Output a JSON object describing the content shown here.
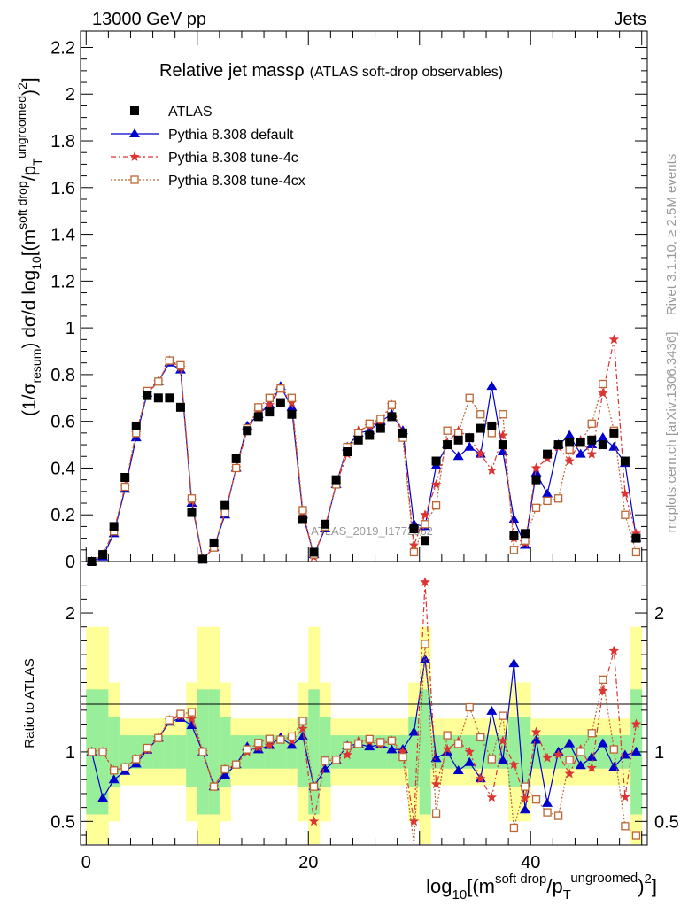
{
  "header": {
    "left": "13000 GeV pp",
    "right": "Jets",
    "side_top": "Rivet 3.1.10, ≥ 2.5M events",
    "side_bottom": "mcplots.cern.ch [arXiv:1306.3436]",
    "watermark": "ATLAS_2019_I1772062"
  },
  "title": {
    "main": "Relative jet massρ",
    "sub": "(ATLAS soft-drop observables)"
  },
  "axes": {
    "ylabel_main": "(1/σresum) dσ/d log10[(m soft drop/pT ungroomed)2]",
    "ylabel_main_parts": {
      "p1": "(1/σ",
      "p2": "resum",
      "p3": ") dσ/d log",
      "p4": "10",
      "p5": "[(m",
      "p6": "soft drop",
      "p7": "/p",
      "p8": "T",
      "p9": "ungroomed",
      "p10": ")",
      "p11": "2",
      "p12": "]"
    },
    "ylabel_ratio": "Ratio to ATLAS",
    "xlabel_parts": {
      "p1": "log",
      "p2": "10",
      "p3": "[(m",
      "p4": "soft drop",
      "p5": "/p",
      "p6": "T",
      "p7": "ungroomed",
      "p8": ")",
      "p9": "2",
      "p10": "]"
    }
  },
  "legend": [
    {
      "label": "ATLAS",
      "marker": "square",
      "color": "#000000"
    },
    {
      "label": "Pythia 8.308 default",
      "marker": "triangle",
      "color": "#0000cc"
    },
    {
      "label": "Pythia 8.308 tune-4c",
      "marker": "star",
      "color": "#dd3333"
    },
    {
      "label": "Pythia 8.308 tune-4cx",
      "marker": "open-square",
      "color": "#bb6633"
    }
  ],
  "chart_data": {
    "type": "scatter",
    "x": [
      0.5,
      1.5,
      2.5,
      3.5,
      4.5,
      5.5,
      6.5,
      7.5,
      8.5,
      9.5,
      10.5,
      11.5,
      12.5,
      13.5,
      14.5,
      15.5,
      16.5,
      17.5,
      18.5,
      19.5,
      20.5,
      21.5,
      22.5,
      23.5,
      24.5,
      25.5,
      26.5,
      27.5,
      28.5,
      29.5,
      30.5,
      31.5,
      32.5,
      33.5,
      34.5,
      35.5,
      36.5,
      37.5,
      38.5,
      39.5,
      40.5,
      41.5,
      42.5,
      43.5,
      44.5,
      45.5,
      46.5,
      47.5,
      48.5,
      49.5
    ],
    "xlim": [
      -0.5,
      50.5
    ],
    "xticks": [
      0,
      20,
      40
    ],
    "main_ylim": [
      0,
      2.27
    ],
    "main_yticks": [
      "0",
      "0.2",
      "0.4",
      "0.6",
      "0.8",
      "1",
      "1.2",
      "1.4",
      "1.6",
      "1.8",
      "2",
      "2.2"
    ],
    "ratio_ylim": [
      0.33,
      2.37
    ],
    "ratio_yticks": [
      "0.5",
      "1",
      "2"
    ],
    "series": [
      {
        "name": "ATLAS",
        "color": "#000000",
        "values": [
          0.0,
          0.03,
          0.15,
          0.36,
          0.58,
          0.71,
          0.7,
          0.7,
          0.66,
          0.21,
          0.01,
          0.08,
          0.24,
          0.44,
          0.56,
          0.62,
          0.64,
          0.68,
          0.63,
          0.18,
          0.04,
          0.16,
          0.35,
          0.47,
          0.52,
          0.54,
          0.57,
          0.62,
          0.55,
          0.14,
          0.09,
          0.43,
          0.5,
          0.52,
          0.53,
          0.57,
          0.58,
          0.5,
          0.11,
          0.12,
          0.35,
          0.46,
          0.5,
          0.51,
          0.51,
          0.52,
          0.5,
          0.55,
          0.43,
          0.1
        ]
      },
      {
        "name": "Pythia 8.308 default",
        "color": "#0000cc",
        "values": [
          0.0,
          0.02,
          0.12,
          0.31,
          0.53,
          0.72,
          0.77,
          0.85,
          0.82,
          0.25,
          0.01,
          0.06,
          0.2,
          0.4,
          0.58,
          0.63,
          0.67,
          0.75,
          0.66,
          0.2,
          0.03,
          0.14,
          0.33,
          0.49,
          0.55,
          0.56,
          0.6,
          0.63,
          0.56,
          0.16,
          0.15,
          0.41,
          0.5,
          0.45,
          0.49,
          0.46,
          0.75,
          0.47,
          0.18,
          0.07,
          0.38,
          0.29,
          0.5,
          0.54,
          0.46,
          0.5,
          0.53,
          0.49,
          0.42,
          0.1
        ]
      },
      {
        "name": "Pythia 8.308 tune-4c",
        "color": "#dd3333",
        "values": [
          0.0,
          0.03,
          0.13,
          0.32,
          0.55,
          0.72,
          0.77,
          0.86,
          0.83,
          0.26,
          0.01,
          0.06,
          0.21,
          0.4,
          0.56,
          0.64,
          0.67,
          0.74,
          0.68,
          0.21,
          0.02,
          0.15,
          0.33,
          0.46,
          0.56,
          0.58,
          0.6,
          0.67,
          0.55,
          0.07,
          0.2,
          0.33,
          0.51,
          0.56,
          0.53,
          0.46,
          0.39,
          0.54,
          0.1,
          0.08,
          0.4,
          0.44,
          0.49,
          0.43,
          0.52,
          0.46,
          0.72,
          0.95,
          0.29,
          0.12
        ]
      },
      {
        "name": "Pythia 8.308 tune-4cx",
        "color": "#bb6633",
        "values": [
          0.0,
          0.03,
          0.13,
          0.32,
          0.55,
          0.73,
          0.77,
          0.86,
          0.84,
          0.27,
          0.01,
          0.06,
          0.21,
          0.4,
          0.57,
          0.66,
          0.7,
          0.74,
          0.7,
          0.22,
          0.03,
          0.15,
          0.33,
          0.49,
          0.55,
          0.59,
          0.61,
          0.67,
          0.53,
          0.04,
          0.16,
          0.24,
          0.56,
          0.55,
          0.7,
          0.63,
          0.55,
          0.63,
          0.05,
          0.09,
          0.23,
          0.26,
          0.27,
          0.48,
          0.51,
          0.59,
          0.76,
          0.56,
          0.2,
          0.04
        ]
      }
    ]
  }
}
